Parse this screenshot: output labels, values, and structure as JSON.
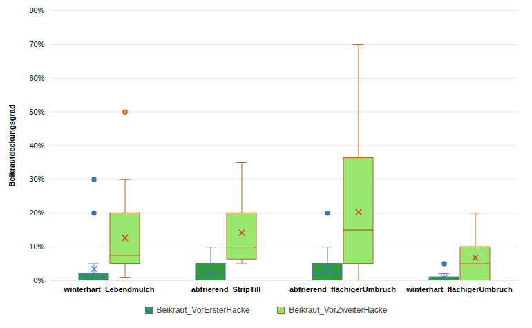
{
  "chart_data": {
    "type": "boxplot",
    "y_label": "Beikrautdeckungsgrad",
    "categories": [
      "winterhart_Lebendmulch",
      "abfrierend_StripTill",
      "abfrierend_flächigerUmbruch",
      "winterhart_flächigerUmbruch"
    ],
    "ylim": [
      0,
      80
    ],
    "yticks": [
      {
        "value": 0,
        "label": "0%"
      },
      {
        "value": 10,
        "label": "10%"
      },
      {
        "value": 20,
        "label": "20%"
      },
      {
        "value": 30,
        "label": "30%"
      },
      {
        "value": 40,
        "label": "40%"
      },
      {
        "value": 50,
        "label": "50%"
      },
      {
        "value": 60,
        "label": "60%"
      },
      {
        "value": 70,
        "label": "70%"
      },
      {
        "value": 80,
        "label": "80%"
      }
    ],
    "grid": true,
    "legend": "bottom",
    "series": [
      {
        "name": "Beikraut_VorErsterHacke",
        "color": "#2e9a3c",
        "values": [
          {
            "min": 0,
            "q1": 0,
            "median": 0.5,
            "q3": 2,
            "max": 5,
            "mean": 3.5,
            "outliers": [
              20,
              30
            ]
          },
          {
            "min": 0,
            "q1": 0,
            "median": 1.5,
            "q3": 5,
            "max": 10,
            "mean": 2.2,
            "outliers": []
          },
          {
            "min": 0,
            "q1": 0,
            "median": 2.5,
            "q3": 5,
            "max": 10,
            "mean": 4,
            "outliers": [
              20
            ]
          },
          {
            "min": 0,
            "q1": 0,
            "median": 0,
            "q3": 1,
            "max": 2,
            "mean": 0.8,
            "outliers": [
              5
            ]
          }
        ]
      },
      {
        "name": "Beikraut_VorZweiterHacke",
        "color": "#98e870",
        "values": [
          {
            "min": 1,
            "q1": 5,
            "median": 7.5,
            "q3": 20,
            "max": 30,
            "mean": 12.7,
            "outliers": [
              50
            ]
          },
          {
            "min": 5,
            "q1": 6.3,
            "median": 10,
            "q3": 20,
            "max": 35,
            "mean": 14.2,
            "outliers": []
          },
          {
            "min": 0,
            "q1": 5,
            "median": 15,
            "q3": 36.3,
            "max": 70,
            "mean": 20.3,
            "outliers": []
          },
          {
            "min": 0,
            "q1": 0,
            "median": 5,
            "q3": 10,
            "max": 20,
            "mean": 6.8,
            "outliers": []
          }
        ]
      }
    ]
  }
}
